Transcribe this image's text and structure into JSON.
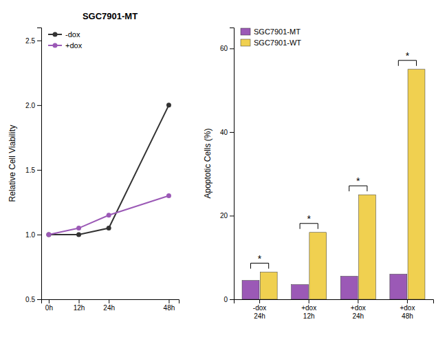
{
  "chart_data": [
    {
      "type": "line",
      "title": "SGC7901-MT",
      "ylabel": "Relative Cell Viability",
      "x": [
        0,
        12,
        24,
        48
      ],
      "xlim": [
        -3,
        52
      ],
      "xticks": [
        {
          "value": 0,
          "label": "0h"
        },
        {
          "value": 12,
          "label": "12h"
        },
        {
          "value": 24,
          "label": "24h"
        },
        {
          "value": 48,
          "label": "48h"
        }
      ],
      "ylim": [
        0.5,
        2.6
      ],
      "yticks": [
        0.5,
        {
          "value": 1.0,
          "label": "1.0"
        },
        1.5,
        {
          "value": 2.0,
          "label": "2.0"
        },
        2.5
      ],
      "legend": "upper left",
      "series": [
        {
          "name": "-dox",
          "color": "#333333",
          "marker": "circle",
          "line_style": "solid",
          "values": [
            1.0,
            1.0,
            1.05,
            2.0
          ]
        },
        {
          "name": "+dox",
          "color": "#9B59B6",
          "marker": "circle",
          "line_style": "solid",
          "values": [
            1.0,
            1.05,
            1.15,
            1.3
          ]
        }
      ]
    },
    {
      "type": "bar",
      "ylabel": "Apoptotic Cells (%)",
      "categories": [
        "-dox 24h",
        "+dox 12h",
        "+dox 24h",
        "+dox 48h"
      ],
      "series": [
        {
          "name": "SGC7901-MT",
          "color": "#9B59B6",
          "values": [
            4.5,
            3.5,
            5.5,
            6.0
          ]
        },
        {
          "name": "SGC7901-WT",
          "color": "#F0D050",
          "values": [
            6.5,
            16.0,
            25.0,
            55.0
          ]
        }
      ],
      "ylim": [
        0,
        65
      ],
      "yticks": [
        0,
        20,
        40,
        60
      ],
      "legend": "upper left",
      "annotations": [
        "*",
        "*",
        "*",
        "*"
      ]
    }
  ]
}
